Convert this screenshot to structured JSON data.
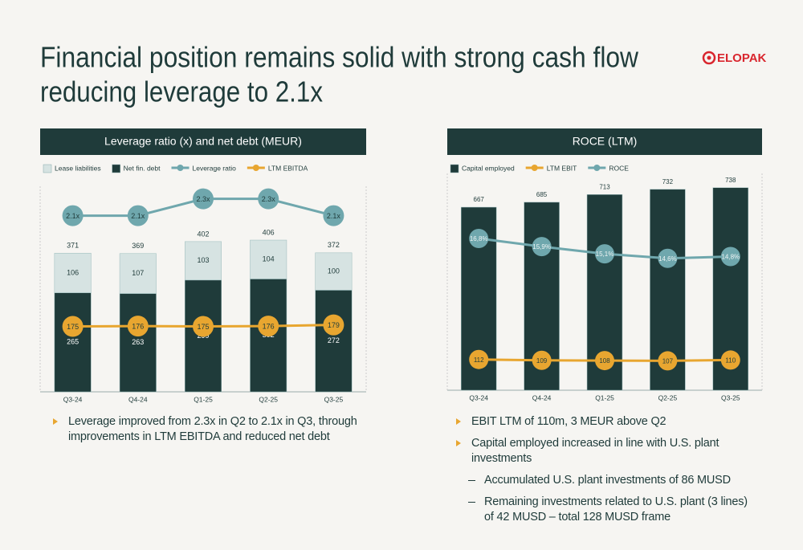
{
  "title": [
    "Financial position remains solid with strong cash flow",
    "reducing leverage to 2.1x"
  ],
  "logo": "ELOPAK",
  "chart_data": [
    {
      "type": "bar",
      "title": "Leverage ratio (x) and net debt (MEUR)",
      "categories": [
        "Q3-24",
        "Q4-24",
        "Q1-25",
        "Q2-25",
        "Q3-25"
      ],
      "series": [
        {
          "name": "Lease liabilities",
          "type": "bar",
          "color": "#d6e3e2",
          "label_color": "#1f3b3a",
          "values": [
            106,
            107,
            103,
            104,
            100
          ]
        },
        {
          "name": "Net fin. debt",
          "type": "bar",
          "color": "#1f3b3a",
          "label_color": "#ffffff",
          "values": [
            265,
            263,
            299,
            302,
            272
          ]
        },
        {
          "name": "Leverage ratio",
          "type": "line",
          "axis": "y2",
          "color": "#6fa7ad",
          "label_color": "#1f3b3a",
          "values": [
            2.1,
            2.1,
            2.3,
            2.3,
            2.1
          ],
          "value_labels": [
            "2.1x",
            "2.1x",
            "2.3x",
            "2.3x",
            "2.1x"
          ]
        },
        {
          "name": "LTM EBITDA",
          "type": "line",
          "color": "#e8a630",
          "label_color": "#1f3b3a",
          "values": [
            175,
            176,
            175,
            176,
            179
          ]
        }
      ],
      "label_position": "inside",
      "total_labels": [
        371,
        369,
        402,
        406,
        372
      ],
      "ylim": [
        0,
        550
      ],
      "y2lim": [
        0,
        2.45
      ]
    },
    {
      "type": "bar",
      "title": "ROCE (LTM)",
      "categories": [
        "Q3-24",
        "Q4-24",
        "Q1-25",
        "Q2-25",
        "Q3-25"
      ],
      "series": [
        {
          "name": "Capital employed",
          "type": "bar",
          "color": "#1f3b3a",
          "label_color": "#1f3b3a",
          "values": [
            667,
            685,
            713,
            732,
            738
          ]
        },
        {
          "name": "LTM EBIT",
          "type": "line",
          "color": "#e8a630",
          "label_color": "#1f3b3a",
          "values": [
            112,
            109,
            108,
            107,
            110
          ]
        },
        {
          "name": "ROCE",
          "type": "line",
          "axis": "y2",
          "color": "#6fa7ad",
          "label_color": "#eef4f4",
          "values": [
            16.8,
            15.9,
            15.1,
            14.6,
            14.8
          ],
          "value_labels": [
            "16,8%",
            "15,9%",
            "15,1%",
            "14,6%",
            "14,8%"
          ]
        }
      ],
      "label_position": "above",
      "ylim": [
        0,
        790
      ],
      "y2lim": [
        0,
        24
      ]
    }
  ],
  "bullets_left": [
    "Leverage improved from 2.3x in Q2 to 2.1x in Q3, through improvements in LTM EBITDA and reduced net debt"
  ],
  "bullets_right": [
    {
      "text": "EBIT LTM of 110m, 3 MEUR above Q2"
    },
    {
      "text": "Capital employed increased in line with U.S. plant investments",
      "sub": [
        "Accumulated U.S. plant investments of 86 MUSD",
        "Remaining investments related to U.S. plant (3 lines) of 42 MUSD – total 128 MUSD frame"
      ]
    }
  ]
}
